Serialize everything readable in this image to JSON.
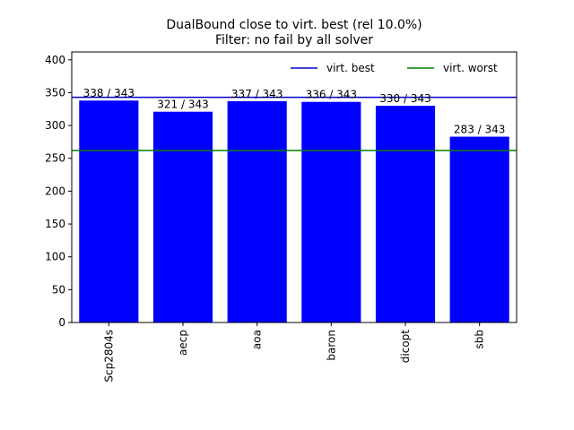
{
  "chart_data": {
    "type": "bar",
    "title": "DualBound close to virt. best (rel 10.0%)",
    "subtitle": "Filter: no fail by all solver",
    "categories": [
      "Scp2804s",
      "aecp",
      "aoa",
      "baron",
      "dicopt",
      "sbb"
    ],
    "values": [
      338,
      321,
      337,
      336,
      330,
      283
    ],
    "bar_labels": [
      "338 / 343",
      "321 / 343",
      "337 / 343",
      "336 / 343",
      "330 / 343",
      "283 / 343"
    ],
    "ylim": [
      0,
      412
    ],
    "yticks": [
      0,
      50,
      100,
      150,
      200,
      250,
      300,
      350,
      400
    ],
    "bar_color": "#0000ff",
    "reference_lines": [
      {
        "name": "virt. best",
        "value": 343,
        "color": "#0000cc"
      },
      {
        "name": "virt. worst",
        "value": 262,
        "color": "#008000"
      }
    ],
    "legend_position": "top-right",
    "grid": false
  }
}
